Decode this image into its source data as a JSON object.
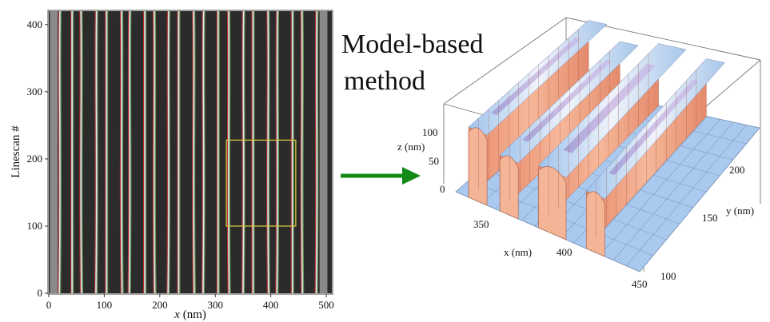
{
  "colors": {
    "background": "#ffffff",
    "scan_bg": "#2b2b2b",
    "line_white": "#e8e8e8",
    "line_red": "#c0282a",
    "line_green": "#5fa04a",
    "roi_box": "#d8c33a",
    "arrow": "#138a17",
    "surface_light": "#b8d4f2",
    "surface_ridge": "#f0a07e",
    "surface_purple": "#8a63b8"
  },
  "left_plot": {
    "xlabel_italic": "x",
    "xlabel_unit": "(nm)",
    "ylabel": "Linescan #",
    "x_ticks": [
      "0",
      "100",
      "200",
      "300",
      "400",
      "500"
    ],
    "y_ticks": [
      "0",
      "100",
      "200",
      "300",
      "400"
    ],
    "x_range": [
      0,
      510
    ],
    "y_range": [
      0,
      420
    ],
    "line_x_positions_nm": [
      20,
      42,
      58,
      86,
      104,
      131,
      146,
      173,
      190,
      216,
      234,
      261,
      279,
      305,
      324,
      351,
      368,
      395,
      412,
      439,
      456,
      483
    ],
    "roi_box_nm": {
      "x": [
        320,
        445
      ],
      "y": [
        100,
        228
      ]
    }
  },
  "annotation": {
    "line1": "Model-based",
    "line2": "method"
  },
  "surface_plot": {
    "z_label": "z (nm)",
    "x_label": "x (nm)",
    "y_label": "y (nm)",
    "z_ticks": [
      "100",
      "50",
      "0"
    ],
    "x_ticks": [
      "350",
      "400",
      "450"
    ],
    "y_ticks": [
      "200",
      "150",
      "100"
    ]
  }
}
